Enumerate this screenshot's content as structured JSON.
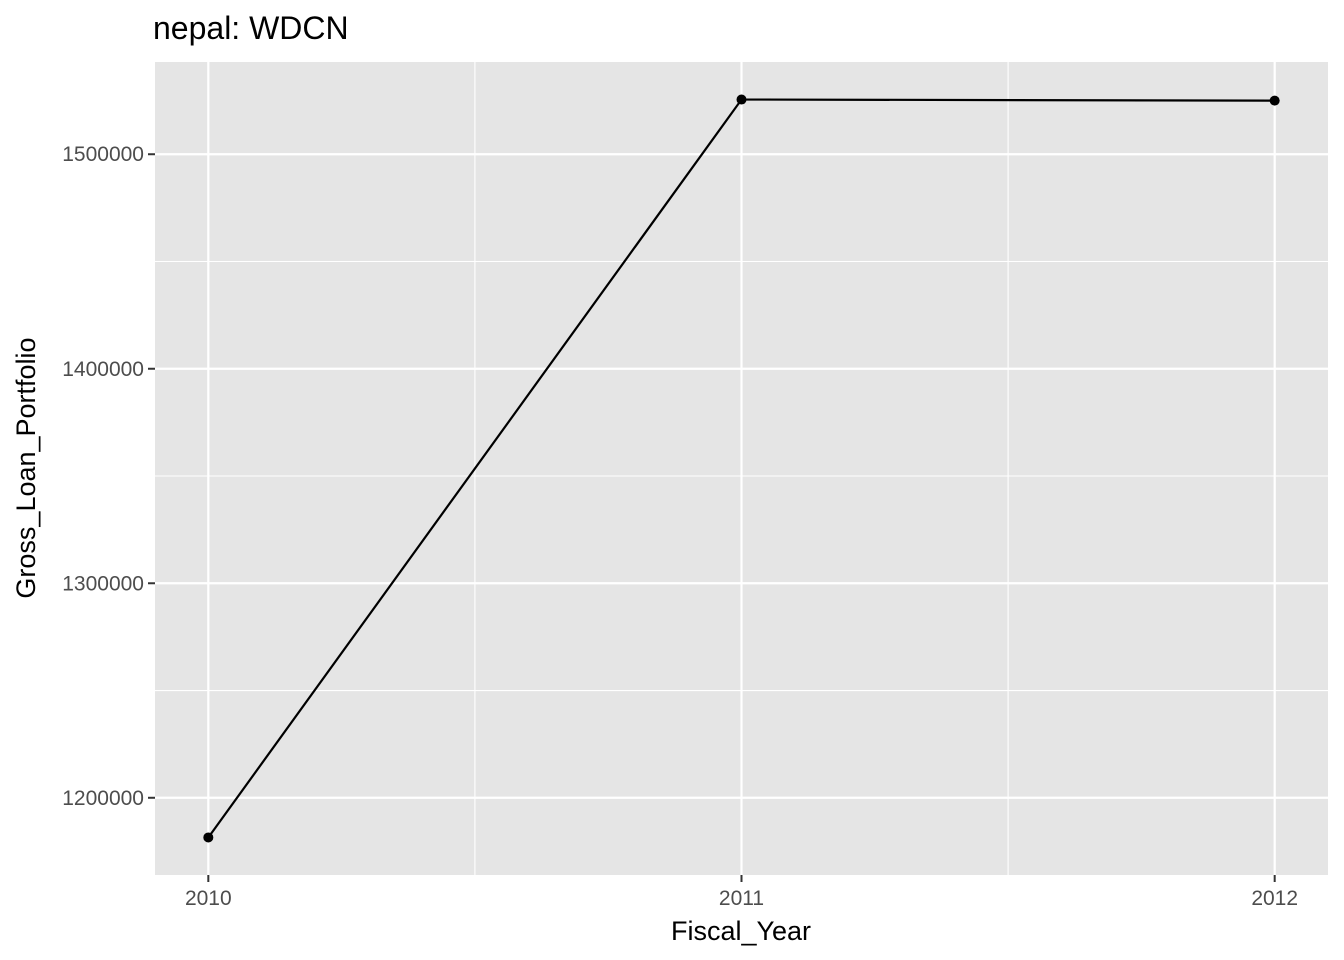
{
  "chart_data": {
    "type": "line",
    "title": "nepal:  WDCN",
    "xlabel": "Fiscal_Year",
    "ylabel": "Gross_Loan_Portfolio",
    "x": [
      2010,
      2011,
      2012
    ],
    "series": [
      {
        "values": [
          1181500,
          1525500,
          1525000
        ]
      }
    ],
    "xlim": [
      2009.9,
      2012.1
    ],
    "ylim": [
      1164000,
      1543000
    ],
    "xticks": [
      2010,
      2011,
      2012
    ],
    "xtick_labels": [
      "2010",
      "2011",
      "2012"
    ],
    "xminor": [
      2010.5,
      2011.5
    ],
    "yticks": [
      1200000,
      1300000,
      1400000,
      1500000
    ],
    "ytick_labels": [
      "1200000",
      "1300000",
      "1400000",
      "1500000"
    ],
    "yminor": [
      1250000,
      1350000,
      1450000
    ],
    "grid": true,
    "colors": {
      "panel": "#e5e5e5",
      "grid": "#ffffff",
      "line": "#000000",
      "tick_text": "#4d4d4d"
    }
  }
}
